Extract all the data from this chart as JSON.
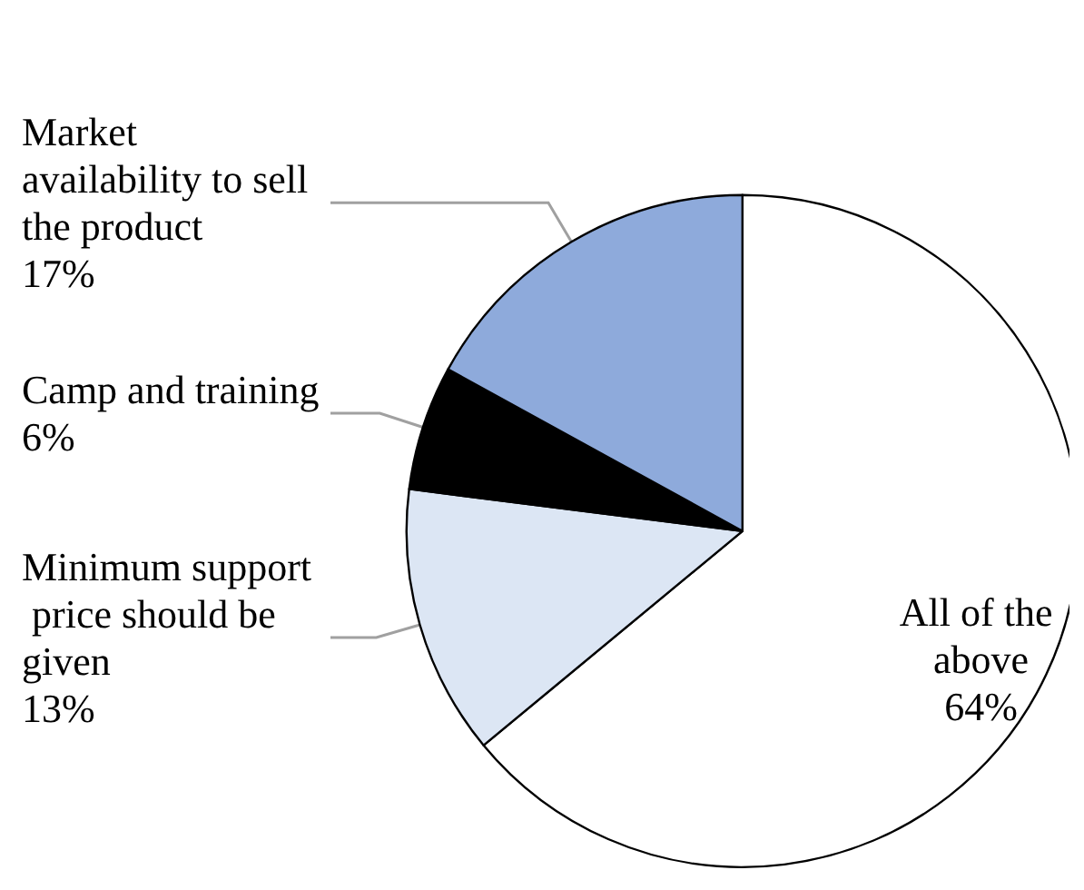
{
  "chart_data": {
    "type": "pie",
    "categories": [
      "All of the above",
      "Minimum support price should be given",
      "Camp and training",
      "Market availability to sell the product"
    ],
    "values": [
      64,
      13,
      6,
      17
    ],
    "value_labels": [
      "64%",
      "13%",
      "6%",
      "17%"
    ],
    "colors": [
      "#ffffff",
      "#dce6f4",
      "#000000",
      "#8eaadb"
    ],
    "legend": false
  }
}
